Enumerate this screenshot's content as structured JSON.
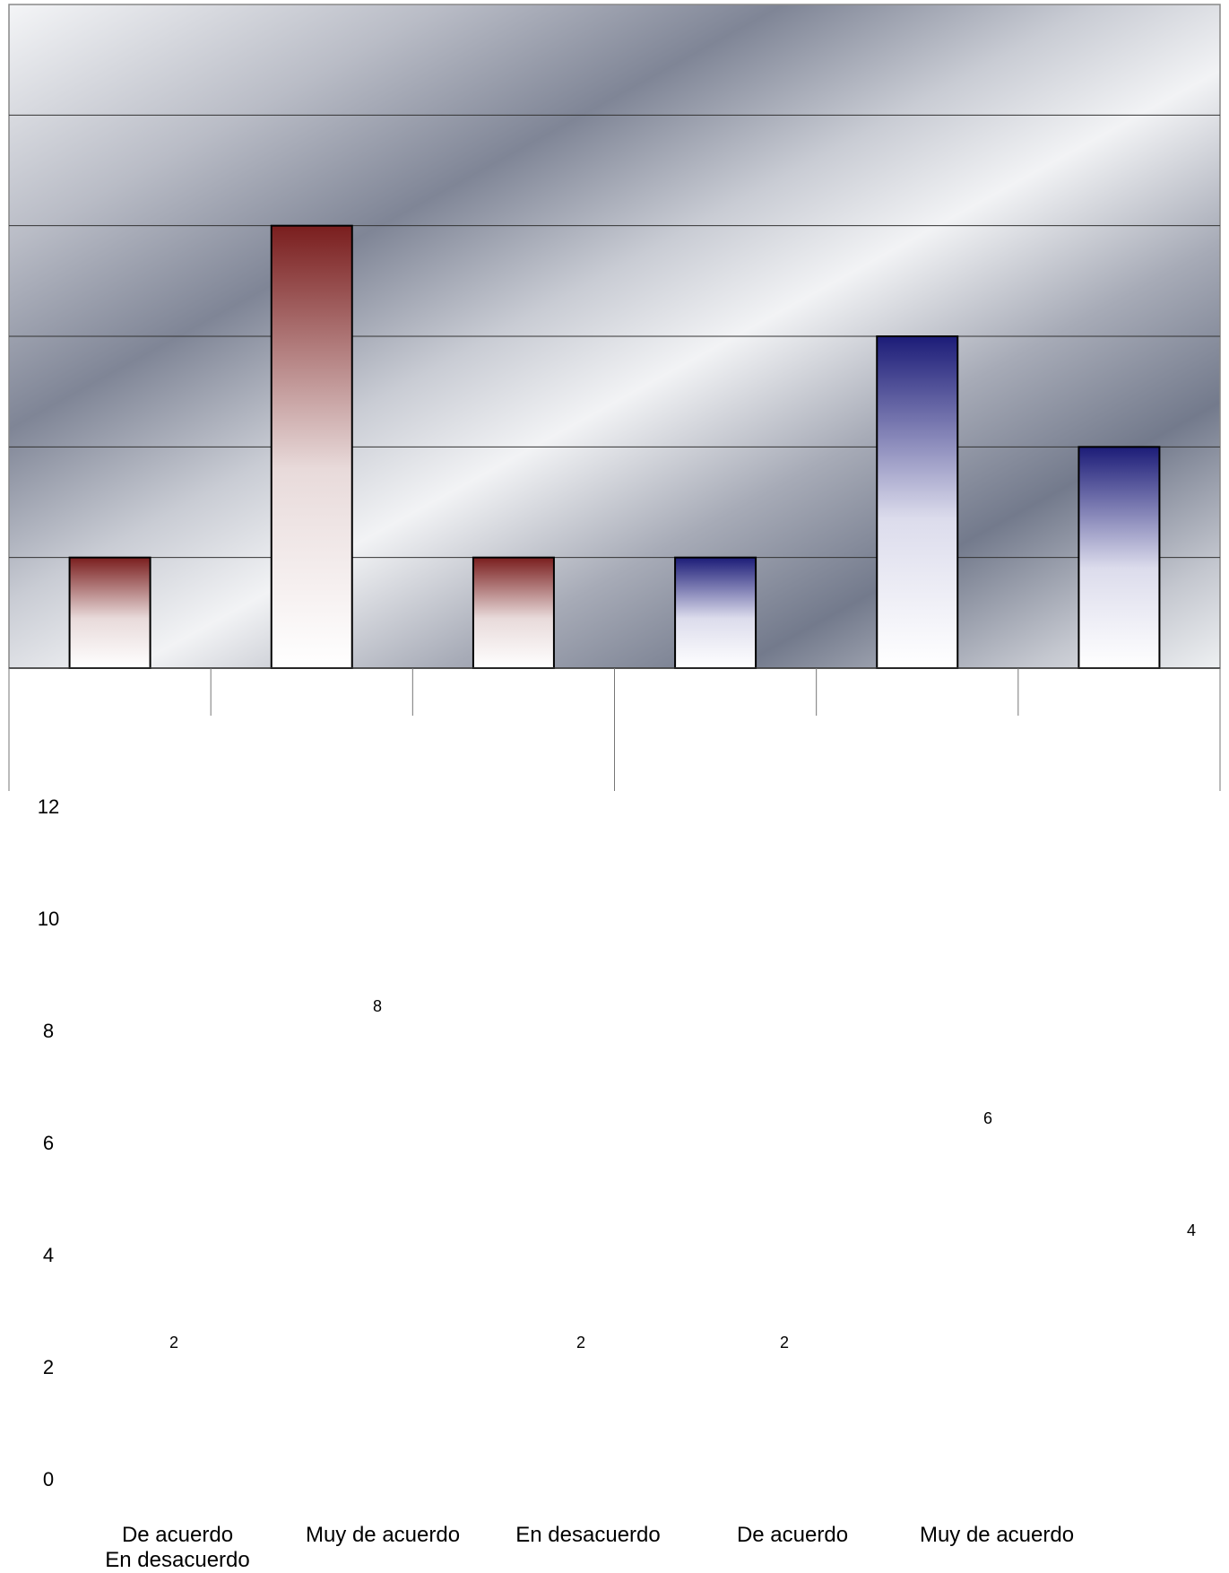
{
  "chart_data": {
    "type": "bar",
    "categories": [
      "De acuerdo",
      "Muy de acuerdo",
      "En desacuerdo",
      "De acuerdo",
      "Muy de acuerdo",
      "En desacuerdo"
    ],
    "values": [
      2,
      8,
      2,
      2,
      6,
      4
    ],
    "ylim": [
      0,
      12
    ],
    "y_ticks": [
      "12",
      "10",
      "8",
      "6",
      "4",
      "2",
      "0"
    ],
    "data_labels": [
      "2",
      "8",
      "2",
      "2",
      "6",
      "4"
    ],
    "grid": true,
    "bar_colors": [
      "#7a1e1e",
      "#7a1e1e",
      "#7a1e1e",
      "#1c1c78",
      "#1c1c78",
      "#1c1c78"
    ]
  }
}
